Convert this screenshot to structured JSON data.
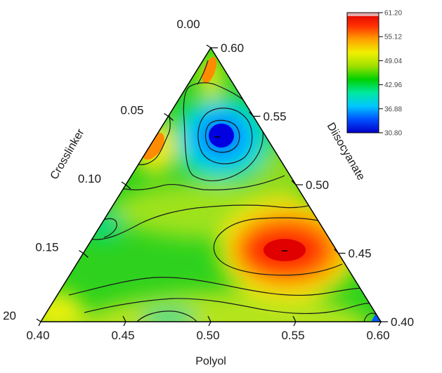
{
  "chart_data": {
    "type": "heatmap",
    "subtype": "ternary-contour",
    "title": "",
    "axes": {
      "bottom": {
        "title": "Polyol",
        "ticks": [
          "0.40",
          "0.45",
          "0.50",
          "0.55",
          "0.60"
        ]
      },
      "left": {
        "title": "Crosslinker",
        "ticks": [
          "0.00",
          "0.05",
          "0.10",
          "0.15",
          "20"
        ]
      },
      "right": {
        "title": "Diisocyanate",
        "ticks": [
          "0.60",
          "0.55",
          "0.50",
          "0.45",
          "0.40"
        ]
      }
    },
    "colorbar": {
      "min": 30.8,
      "max": 61.2,
      "labels": [
        "61.20",
        "55.12",
        "49.04",
        "42.96",
        "36.88",
        "30.80"
      ],
      "colors": [
        "#0000c8",
        "#0050ff",
        "#00c8ff",
        "#00e8a0",
        "#00d000",
        "#a0e000",
        "#f0f000",
        "#ffa000",
        "#ff3000",
        "#e00000"
      ]
    },
    "features": [
      {
        "kind": "minimum",
        "value": 30.8,
        "polyol": 0.51,
        "crosslinker": 0.03,
        "diisocyanate": 0.46
      },
      {
        "kind": "maximum",
        "value": 61.2,
        "polyol": 0.555,
        "crosslinker": 0.12,
        "diisocyanate": 0.325
      },
      {
        "kind": "local-high",
        "value": 57,
        "polyol": 0.45,
        "crosslinker": 0.06,
        "diisocyanate": 0.49
      },
      {
        "kind": "local-high",
        "value": 55,
        "polyol": 0.49,
        "crosslinker": 0.005,
        "diisocyanate": 0.505
      }
    ],
    "grid": false
  }
}
